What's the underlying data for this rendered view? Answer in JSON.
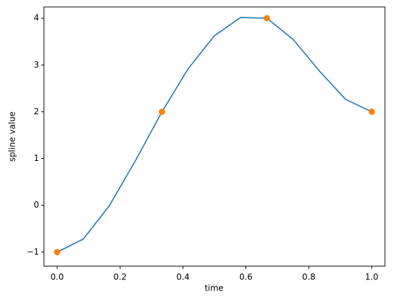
{
  "chart_data": {
    "type": "line",
    "xlabel": "time",
    "ylabel": "spline value",
    "series": [
      {
        "style": "line",
        "color": "#1f77b4",
        "x": [
          0,
          0.0833,
          0.1667,
          0.25,
          0.3333,
          0.4167,
          0.5,
          0.5833,
          0.6667,
          0.75,
          0.8333,
          0.9167,
          1.0
        ],
        "values": [
          -1,
          -0.719,
          0,
          0.969,
          2,
          2.922,
          3.625,
          4.016,
          4,
          3.547,
          2.875,
          2.266,
          2
        ]
      },
      {
        "style": "markers",
        "color": "#ff7f0e",
        "x": [
          0,
          0.3333,
          0.6667,
          1.0
        ],
        "values": [
          -1,
          2,
          4,
          2
        ]
      }
    ],
    "xlim": [
      -0.042,
      1.042
    ],
    "ylim": [
      -1.3,
      4.24
    ],
    "xticks": [
      {
        "value": 0,
        "label": "0.0"
      },
      {
        "value": 0.2,
        "label": "0.2"
      },
      {
        "value": 0.4,
        "label": "0.4"
      },
      {
        "value": 0.6,
        "label": "0.6"
      },
      {
        "value": 0.8,
        "label": "0.8"
      },
      {
        "value": 1.0,
        "label": "1.0"
      }
    ],
    "yticks": [
      {
        "value": -1,
        "label": "−1"
      },
      0,
      1,
      2,
      3,
      4
    ]
  }
}
